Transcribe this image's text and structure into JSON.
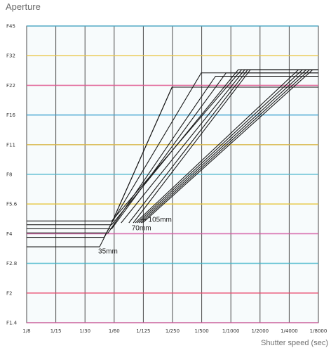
{
  "chart_data": {
    "type": "line",
    "ylabel": "Aperture",
    "xlabel": "Shutter speed (sec)",
    "xscale": "log",
    "yscale": "log",
    "x_ticks": [
      "1/8",
      "1/15",
      "1/30",
      "1/60",
      "1/125",
      "1/250",
      "1/500",
      "1/1000",
      "1/2000",
      "1/4000",
      "1/8000"
    ],
    "y_ticks": [
      "F1.4",
      "F2",
      "F2.8",
      "F4",
      "F5.6",
      "F8",
      "F11",
      "F16",
      "F22",
      "F32",
      "F45"
    ],
    "grid": true,
    "annotations": [
      "105mm",
      "70mm",
      "35mm"
    ],
    "series": [
      {
        "points": [
          [
            "1/8",
            3.4
          ],
          [
            "1/45",
            3.4
          ],
          [
            "1/60",
            4.5
          ],
          [
            "1/500",
            26.0
          ],
          [
            "1/8000",
            26.0
          ]
        ]
      },
      {
        "points": [
          [
            "1/8",
            3.8
          ],
          [
            "1/50",
            3.8
          ],
          [
            "1/60",
            4.5
          ],
          [
            "1/250",
            22.0
          ],
          [
            "1/8000",
            22.0
          ]
        ]
      },
      {
        "points": [
          [
            "1/8",
            4.0
          ],
          [
            "1/55",
            4.0
          ],
          [
            "1/700",
            25.0
          ],
          [
            "1/8000",
            25.0
          ]
        ]
      },
      {
        "points": [
          [
            "1/8",
            4.2
          ],
          [
            "1/60",
            4.2
          ],
          [
            "1/900",
            26.0
          ],
          [
            "1/8000",
            26.0
          ]
        ]
      },
      {
        "points": [
          [
            "1/8",
            4.4
          ],
          [
            "1/60",
            4.4
          ],
          [
            "1/1200",
            27.0
          ],
          [
            "1/8000",
            27.0
          ]
        ]
      },
      {
        "points": [
          [
            "1/8",
            4.6
          ],
          [
            "1/60",
            4.6
          ],
          [
            "1/1300",
            27.0
          ],
          [
            "1/8000",
            27.0
          ]
        ]
      },
      {
        "points": [
          [
            "1/75",
            4.5
          ],
          [
            "1/1400",
            27.0
          ],
          [
            "1/8000",
            27.0
          ]
        ]
      },
      {
        "points": [
          [
            "1/90",
            4.5
          ],
          [
            "1/1500",
            27.0
          ],
          [
            "1/8000",
            27.0
          ]
        ]
      },
      {
        "points": [
          [
            "1/100",
            4.5
          ],
          [
            "1/1600",
            27.0
          ],
          [
            "1/8000",
            27.0
          ]
        ]
      },
      {
        "points": [
          [
            "1/105",
            4.5
          ],
          [
            "1/5000",
            27.0
          ],
          [
            "1/8000",
            27.0
          ]
        ]
      },
      {
        "points": [
          [
            "1/110",
            4.5
          ],
          [
            "1/5500",
            27.0
          ],
          [
            "1/8000",
            27.0
          ]
        ]
      },
      {
        "points": [
          [
            "1/115",
            4.5
          ],
          [
            "1/6000",
            27.0
          ],
          [
            "1/8000",
            27.0
          ]
        ]
      },
      {
        "points": [
          [
            "1/120",
            4.5
          ],
          [
            "1/6500",
            27.0
          ],
          [
            "1/8000",
            27.0
          ]
        ]
      },
      {
        "points": [
          [
            "1/125",
            4.5
          ],
          [
            "1/7000",
            27.0
          ],
          [
            "1/8000",
            27.0
          ]
        ]
      },
      {
        "points": [
          [
            "1/60",
            4.5
          ],
          [
            "1/250",
            22.0
          ]
        ]
      }
    ]
  }
}
